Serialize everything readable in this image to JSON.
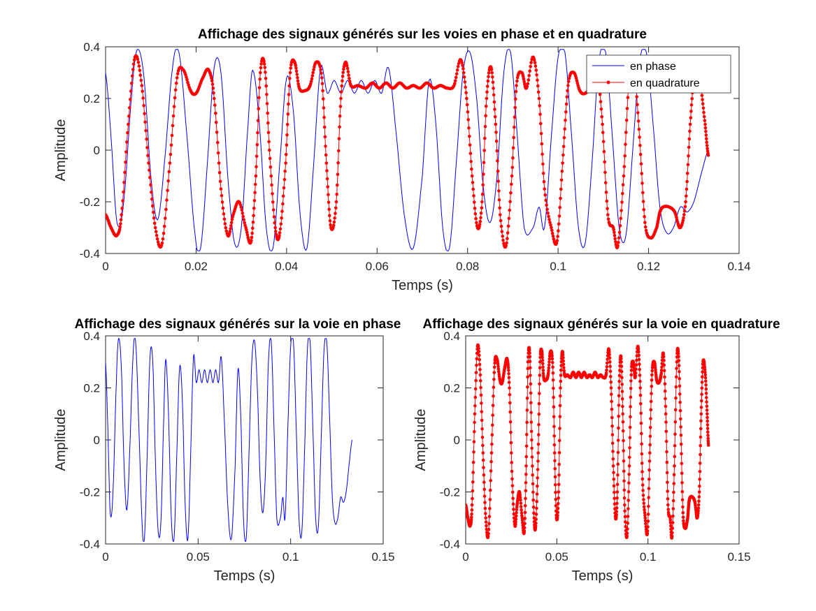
{
  "window": {
    "background": "#ffffff"
  },
  "colors": {
    "in_phase": "#0000ff",
    "quadrature": "#ff0000",
    "axes": "#262626"
  },
  "chart_data": [
    {
      "id": "top",
      "type": "line",
      "title": "Affichage des signaux générés sur les voies en phase et en quadrature",
      "xlabel": "Temps (s)",
      "ylabel": "Amplitude",
      "xlim": [
        0,
        0.14
      ],
      "ylim": [
        -0.4,
        0.4
      ],
      "xticks": [
        0,
        0.02,
        0.04,
        0.06,
        0.08,
        0.1,
        0.12,
        0.14
      ],
      "xtick_labels": [
        "0",
        "0.02",
        "0.04",
        "0.06",
        "0.08",
        "0.1",
        "0.12",
        "0.14"
      ],
      "yticks": [
        -0.4,
        -0.2,
        0,
        0.2,
        0.4
      ],
      "ytick_labels": [
        "-0.4",
        "-0.2",
        "0",
        "0.2",
        "0.4"
      ],
      "legend": {
        "location": "top-right",
        "entries": [
          "en phase",
          "en quadrature"
        ]
      },
      "series": [
        {
          "name": "en phase",
          "signal": "I",
          "color": "#0000ff",
          "marker": "none"
        },
        {
          "name": "en quadrature",
          "signal": "Q",
          "color": "#ff0000",
          "marker": "dot"
        }
      ]
    },
    {
      "id": "bottom-left",
      "type": "line",
      "title": "Affichage des signaux générés sur la voie en phase",
      "xlabel": "Temps (s)",
      "ylabel": "Amplitude",
      "xlim": [
        0,
        0.15
      ],
      "ylim": [
        -0.4,
        0.4
      ],
      "xticks": [
        0,
        0.05,
        0.1,
        0.15
      ],
      "xtick_labels": [
        "0",
        "0.05",
        "0.1",
        "0.15"
      ],
      "yticks": [
        -0.4,
        -0.2,
        0,
        0.2,
        0.4
      ],
      "ytick_labels": [
        "-0.4",
        "-0.2",
        "0",
        "0.2",
        "0.4"
      ],
      "series": [
        {
          "name": "en phase",
          "signal": "I",
          "color": "#0000ff",
          "marker": "none"
        }
      ]
    },
    {
      "id": "bottom-right",
      "type": "line",
      "title": "Affichage des signaux générés sur la voie en quadrature",
      "xlabel": "Temps (s)",
      "ylabel": "Amplitude",
      "xlim": [
        0,
        0.15
      ],
      "ylim": [
        -0.4,
        0.4
      ],
      "xticks": [
        0,
        0.05,
        0.1,
        0.15
      ],
      "xtick_labels": [
        "0",
        "0.05",
        "0.1",
        "0.15"
      ],
      "yticks": [
        -0.4,
        -0.2,
        0,
        0.2,
        0.4
      ],
      "ytick_labels": [
        "-0.4",
        "-0.2",
        "0",
        "0.2",
        "0.4"
      ],
      "series": [
        {
          "name": "en quadrature",
          "signal": "Q",
          "color": "#ff0000",
          "marker": "dot"
        }
      ]
    }
  ],
  "signals": {
    "I": {
      "description_free": true,
      "points": [
        [
          0,
          0.3
        ],
        [
          0.0012,
          0.05
        ],
        [
          0.0025,
          -0.28
        ],
        [
          0.004,
          -0.2
        ],
        [
          0.0058,
          0.22
        ],
        [
          0.007,
          0.39
        ],
        [
          0.0085,
          0.28
        ],
        [
          0.01,
          -0.1
        ],
        [
          0.0115,
          -0.27
        ],
        [
          0.013,
          -0.05
        ],
        [
          0.0148,
          0.32
        ],
        [
          0.0162,
          0.38
        ],
        [
          0.018,
          0.05
        ],
        [
          0.0198,
          -0.33
        ],
        [
          0.021,
          -0.38
        ],
        [
          0.0225,
          -0.05
        ],
        [
          0.024,
          0.32
        ],
        [
          0.0255,
          0.3
        ],
        [
          0.027,
          -0.1
        ],
        [
          0.0285,
          -0.36
        ],
        [
          0.03,
          -0.3
        ],
        [
          0.0315,
          0.1
        ],
        [
          0.0325,
          0.31
        ],
        [
          0.034,
          0.1
        ],
        [
          0.0355,
          -0.3
        ],
        [
          0.037,
          -0.38
        ],
        [
          0.0385,
          -0.05
        ],
        [
          0.04,
          0.28
        ],
        [
          0.0415,
          0.15
        ],
        [
          0.043,
          -0.25
        ],
        [
          0.0445,
          -0.38
        ],
        [
          0.046,
          -0.05
        ],
        [
          0.0475,
          0.32
        ],
        [
          0.049,
          0.22
        ],
        [
          0.0505,
          0.27
        ],
        [
          0.052,
          0.22
        ],
        [
          0.0535,
          0.27
        ],
        [
          0.055,
          0.22
        ],
        [
          0.0565,
          0.27
        ],
        [
          0.058,
          0.22
        ],
        [
          0.0595,
          0.27
        ],
        [
          0.061,
          0.22
        ],
        [
          0.0625,
          0.32
        ],
        [
          0.064,
          0.1
        ],
        [
          0.066,
          -0.25
        ],
        [
          0.068,
          -0.38
        ],
        [
          0.07,
          -0.1
        ],
        [
          0.0715,
          0.27
        ],
        [
          0.073,
          0.1
        ],
        [
          0.0745,
          -0.3
        ],
        [
          0.076,
          -0.38
        ],
        [
          0.0775,
          -0.05
        ],
        [
          0.079,
          0.3
        ],
        [
          0.0805,
          0.38
        ],
        [
          0.082,
          0.2
        ],
        [
          0.0835,
          -0.15
        ],
        [
          0.085,
          -0.28
        ],
        [
          0.0865,
          -0.1
        ],
        [
          0.088,
          0.3
        ],
        [
          0.0895,
          0.38
        ],
        [
          0.091,
          0.05
        ],
        [
          0.0925,
          -0.3
        ],
        [
          0.0945,
          -0.3
        ],
        [
          0.0958,
          -0.22
        ],
        [
          0.097,
          -0.3
        ],
        [
          0.0985,
          0.05
        ],
        [
          0.1,
          0.36
        ],
        [
          0.1015,
          0.38
        ],
        [
          0.103,
          0.05
        ],
        [
          0.1045,
          -0.3
        ],
        [
          0.106,
          -0.36
        ],
        [
          0.1075,
          -0.05
        ],
        [
          0.109,
          0.34
        ],
        [
          0.1105,
          0.38
        ],
        [
          0.112,
          0.05
        ],
        [
          0.1135,
          -0.3
        ],
        [
          0.115,
          -0.33
        ],
        [
          0.1165,
          0.0
        ],
        [
          0.118,
          0.34
        ],
        [
          0.1195,
          0.38
        ],
        [
          0.121,
          0.1
        ],
        [
          0.1225,
          -0.22
        ],
        [
          0.124,
          -0.32
        ],
        [
          0.1255,
          -0.3
        ],
        [
          0.127,
          -0.22
        ],
        [
          0.1285,
          -0.24
        ],
        [
          0.13,
          -0.2
        ],
        [
          0.1315,
          -0.1
        ],
        [
          0.1332,
          0.0
        ]
      ]
    },
    "Q": {
      "points": [
        [
          0,
          -0.25
        ],
        [
          0.0012,
          -0.3
        ],
        [
          0.0025,
          -0.33
        ],
        [
          0.0035,
          -0.25
        ],
        [
          0.005,
          0.1
        ],
        [
          0.0065,
          0.36
        ],
        [
          0.008,
          0.25
        ],
        [
          0.0095,
          -0.05
        ],
        [
          0.011,
          -0.3
        ],
        [
          0.0125,
          -0.36
        ],
        [
          0.0142,
          -0.05
        ],
        [
          0.0158,
          0.28
        ],
        [
          0.0172,
          0.31
        ],
        [
          0.0188,
          0.23
        ],
        [
          0.02,
          0.22
        ],
        [
          0.0215,
          0.28
        ],
        [
          0.0228,
          0.31
        ],
        [
          0.024,
          0.2
        ],
        [
          0.0255,
          -0.15
        ],
        [
          0.027,
          -0.33
        ],
        [
          0.0282,
          -0.25
        ],
        [
          0.0295,
          -0.2
        ],
        [
          0.031,
          -0.3
        ],
        [
          0.0322,
          -0.35
        ],
        [
          0.0332,
          -0.1
        ],
        [
          0.0342,
          0.3
        ],
        [
          0.0352,
          0.32
        ],
        [
          0.0362,
          0.0
        ],
        [
          0.0375,
          -0.3
        ],
        [
          0.0385,
          -0.32
        ],
        [
          0.0398,
          -0.05
        ],
        [
          0.0408,
          0.3
        ],
        [
          0.0418,
          0.34
        ],
        [
          0.0428,
          0.24
        ],
        [
          0.044,
          0.23
        ],
        [
          0.0452,
          0.25
        ],
        [
          0.0465,
          0.34
        ],
        [
          0.0478,
          0.28
        ],
        [
          0.0488,
          -0.05
        ],
        [
          0.0498,
          -0.3
        ],
        [
          0.051,
          -0.2
        ],
        [
          0.052,
          0.2
        ],
        [
          0.053,
          0.34
        ],
        [
          0.0542,
          0.25
        ],
        [
          0.0558,
          0.25
        ],
        [
          0.0575,
          0.24
        ],
        [
          0.059,
          0.26
        ],
        [
          0.0605,
          0.24
        ],
        [
          0.062,
          0.26
        ],
        [
          0.0635,
          0.24
        ],
        [
          0.065,
          0.26
        ],
        [
          0.0665,
          0.24
        ],
        [
          0.068,
          0.25
        ],
        [
          0.0695,
          0.24
        ],
        [
          0.071,
          0.26
        ],
        [
          0.0725,
          0.24
        ],
        [
          0.074,
          0.25
        ],
        [
          0.0755,
          0.24
        ],
        [
          0.077,
          0.25
        ],
        [
          0.0785,
          0.35
        ],
        [
          0.0798,
          0.2
        ],
        [
          0.081,
          -0.1
        ],
        [
          0.0822,
          -0.3
        ],
        [
          0.0832,
          -0.2
        ],
        [
          0.0842,
          0.2
        ],
        [
          0.0852,
          0.32
        ],
        [
          0.0862,
          0.1
        ],
        [
          0.0872,
          -0.25
        ],
        [
          0.0885,
          -0.37
        ],
        [
          0.0898,
          -0.1
        ],
        [
          0.0908,
          0.25
        ],
        [
          0.092,
          0.3
        ],
        [
          0.093,
          0.24
        ],
        [
          0.0945,
          0.36
        ],
        [
          0.0958,
          0.2
        ],
        [
          0.097,
          -0.15
        ],
        [
          0.0985,
          -0.3
        ],
        [
          0.0998,
          -0.35
        ],
        [
          0.101,
          -0.05
        ],
        [
          0.1022,
          0.25
        ],
        [
          0.1035,
          0.3
        ],
        [
          0.1048,
          0.23
        ],
        [
          0.106,
          0.22
        ],
        [
          0.1072,
          0.25
        ],
        [
          0.1085,
          0.33
        ],
        [
          0.1098,
          0.1
        ],
        [
          0.111,
          -0.25
        ],
        [
          0.1122,
          -0.3
        ],
        [
          0.1132,
          -0.37
        ],
        [
          0.1145,
          -0.1
        ],
        [
          0.1158,
          0.3
        ],
        [
          0.1168,
          0.32
        ],
        [
          0.118,
          0.05
        ],
        [
          0.1192,
          -0.28
        ],
        [
          0.1205,
          -0.34
        ],
        [
          0.1218,
          -0.3
        ],
        [
          0.1225,
          -0.24
        ],
        [
          0.1232,
          -0.22
        ],
        [
          0.1245,
          -0.22
        ],
        [
          0.1258,
          -0.24
        ],
        [
          0.127,
          -0.3
        ],
        [
          0.1282,
          -0.2
        ],
        [
          0.1292,
          0.1
        ],
        [
          0.1302,
          0.3
        ],
        [
          0.1315,
          0.25
        ],
        [
          0.1325,
          0.1
        ],
        [
          0.1332,
          -0.02
        ]
      ]
    }
  }
}
